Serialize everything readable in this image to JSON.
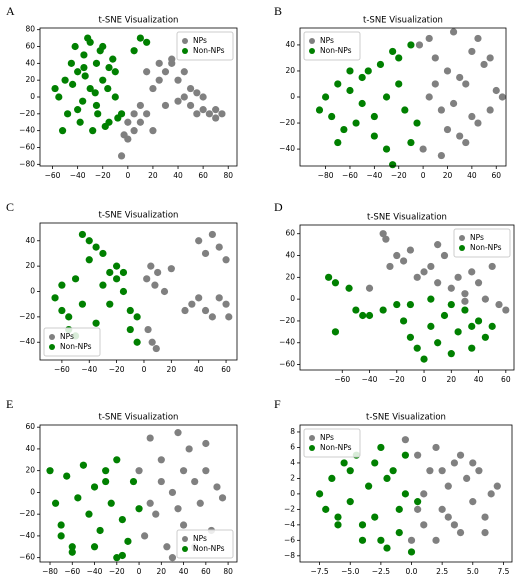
{
  "chart_data": [
    {
      "panel_label": "A",
      "type": "scatter",
      "title": "t-SNE Visualization",
      "legend": "upper right",
      "grid": false,
      "xlim": [
        -70,
        87
      ],
      "ylim": [
        -82,
        82
      ],
      "xticks": [
        {
          "value": -60,
          "label": "−60"
        },
        {
          "value": -40,
          "label": "−40"
        },
        {
          "value": -20,
          "label": "−20"
        },
        0,
        20,
        40,
        60,
        80
      ],
      "yticks": [
        {
          "value": -80,
          "label": "−80"
        },
        {
          "value": -60,
          "label": "−60"
        },
        {
          "value": -40,
          "label": "−40"
        },
        {
          "value": -20,
          "label": "−20"
        },
        0,
        20,
        40,
        60,
        80
      ],
      "series": [
        {
          "name": "NPs",
          "color": "#808080",
          "x": [
            -5,
            0,
            5,
            10,
            15,
            20,
            25,
            30,
            35,
            40,
            45,
            50,
            55,
            60,
            65,
            70,
            75,
            30,
            40,
            50,
            20,
            10,
            60,
            45,
            35,
            25,
            15,
            5,
            0,
            -3,
            55,
            70
          ],
          "y": [
            -70,
            -50,
            -40,
            -30,
            -20,
            10,
            20,
            30,
            40,
            20,
            0,
            -10,
            -20,
            -15,
            -20,
            -25,
            -20,
            -10,
            -5,
            10,
            -40,
            -10,
            0,
            30,
            45,
            40,
            30,
            -20,
            -30,
            -45,
            5,
            -15
          ]
        },
        {
          "name": "Non-NPs",
          "color": "#008000",
          "x": [
            -55,
            -50,
            -45,
            -40,
            -35,
            -30,
            -25,
            -20,
            -15,
            -10,
            -5,
            -48,
            -38,
            -28,
            -18,
            -8,
            -42,
            -32,
            -22,
            -12,
            -52,
            -36,
            -26,
            -16,
            -44,
            -34,
            -24,
            -30,
            -20,
            -58,
            -10,
            -25,
            -40,
            -35,
            -15,
            5,
            10,
            15
          ],
          "y": [
            0,
            20,
            40,
            30,
            50,
            10,
            -10,
            20,
            35,
            0,
            -20,
            -20,
            -30,
            -40,
            -35,
            -25,
            60,
            70,
            55,
            45,
            -40,
            -5,
            5,
            10,
            15,
            25,
            -20,
            65,
            60,
            10,
            30,
            40,
            -15,
            35,
            -30,
            55,
            70,
            65
          ]
        }
      ]
    },
    {
      "panel_label": "B",
      "type": "scatter",
      "title": "t-SNE Visualization",
      "legend": "upper left",
      "grid": false,
      "xlim": [
        -101,
        68
      ],
      "ylim": [
        -53,
        53
      ],
      "xticks": [
        {
          "value": -80,
          "label": "−80"
        },
        {
          "value": -60,
          "label": "−60"
        },
        {
          "value": -40,
          "label": "−40"
        },
        {
          "value": -20,
          "label": "−20"
        },
        0,
        20,
        40,
        60
      ],
      "yticks": [
        {
          "value": -40,
          "label": "−40"
        },
        {
          "value": -20,
          "label": "−20"
        },
        0,
        20,
        40
      ],
      "series": [
        {
          "name": "NPs",
          "color": "#808080",
          "x": [
            -3,
            0,
            5,
            10,
            15,
            20,
            25,
            30,
            35,
            40,
            45,
            50,
            55,
            60,
            65,
            5,
            15,
            25,
            35,
            45,
            55,
            10,
            20,
            30,
            40
          ],
          "y": [
            40,
            -40,
            45,
            30,
            -45,
            20,
            50,
            -30,
            10,
            35,
            -20,
            25,
            -10,
            5,
            0,
            0,
            -10,
            -5,
            -35,
            45,
            30,
            10,
            -25,
            15,
            -15
          ]
        },
        {
          "name": "Non-NPs",
          "color": "#008000",
          "x": [
            -85,
            -80,
            -75,
            -70,
            -65,
            -60,
            -55,
            -50,
            -45,
            -40,
            -35,
            -30,
            -25,
            -20,
            -15,
            -10,
            -5,
            -70,
            -60,
            -50,
            -40,
            -30,
            -20,
            -25,
            -10
          ],
          "y": [
            -10,
            0,
            -15,
            10,
            -25,
            5,
            -20,
            15,
            20,
            -30,
            25,
            -40,
            35,
            30,
            -10,
            40,
            -20,
            -35,
            20,
            -5,
            -15,
            0,
            10,
            -52,
            -35
          ]
        }
      ]
    },
    {
      "panel_label": "C",
      "type": "scatter",
      "title": "t-SNE Visualization",
      "legend": "lower left",
      "grid": false,
      "xlim": [
        -76,
        68
      ],
      "ylim": [
        -54,
        54
      ],
      "xticks": [
        {
          "value": -60,
          "label": "−60"
        },
        {
          "value": -40,
          "label": "−40"
        },
        {
          "value": -20,
          "label": "−20"
        },
        0,
        20,
        40,
        60
      ],
      "yticks": [
        {
          "value": -40,
          "label": "−40"
        },
        {
          "value": -20,
          "label": "−20"
        },
        0,
        20,
        40
      ],
      "series": [
        {
          "name": "NPs",
          "color": "#808080",
          "x": [
            2,
            5,
            8,
            10,
            15,
            20,
            3,
            6,
            9,
            40,
            45,
            50,
            55,
            60,
            35,
            45,
            55,
            62,
            30,
            40,
            50,
            60
          ],
          "y": [
            10,
            20,
            5,
            15,
            0,
            18,
            -30,
            -40,
            -45,
            40,
            30,
            45,
            35,
            25,
            -10,
            -15,
            -5,
            -20,
            -15,
            -5,
            -20,
            -10
          ]
        },
        {
          "name": "Non-NPs",
          "color": "#008000",
          "x": [
            -65,
            -60,
            -55,
            -50,
            -45,
            -40,
            -35,
            -30,
            -25,
            -20,
            -15,
            -10,
            -5,
            -40,
            -45,
            -35,
            -60,
            -55,
            -25,
            -20,
            -15,
            -10,
            -5,
            -30,
            -50
          ],
          "y": [
            -5,
            5,
            -20,
            10,
            -10,
            40,
            35,
            30,
            15,
            20,
            0,
            -15,
            -40,
            25,
            45,
            -25,
            -15,
            -30,
            -10,
            10,
            15,
            -30,
            -20,
            5,
            -35
          ]
        }
      ]
    },
    {
      "panel_label": "D",
      "type": "scatter",
      "title": "t-SNE Visualization",
      "legend": "upper right",
      "grid": false,
      "xlim": [
        -91,
        66
      ],
      "ylim": [
        -65,
        68
      ],
      "xticks": [
        {
          "value": -60,
          "label": "−60"
        },
        {
          "value": -40,
          "label": "−40"
        },
        {
          "value": -20,
          "label": "−20"
        },
        0,
        20,
        40,
        60
      ],
      "yticks": [
        {
          "value": -60,
          "label": "−60"
        },
        {
          "value": -40,
          "label": "−40"
        },
        {
          "value": -20,
          "label": "−20"
        },
        0,
        20,
        40,
        60
      ],
      "series": [
        {
          "name": "NPs",
          "color": "#808080",
          "x": [
            -30,
            -28,
            -20,
            -15,
            -10,
            -5,
            0,
            5,
            10,
            15,
            20,
            25,
            30,
            35,
            40,
            45,
            50,
            55,
            60,
            -40,
            -25,
            10,
            30
          ],
          "y": [
            60,
            55,
            40,
            35,
            45,
            20,
            25,
            30,
            15,
            40,
            10,
            20,
            5,
            25,
            15,
            0,
            30,
            -5,
            -10,
            10,
            30,
            50,
            -2
          ]
        },
        {
          "name": "Non-NPs",
          "color": "#008000",
          "x": [
            -70,
            -65,
            -55,
            -50,
            -45,
            -65,
            -40,
            -30,
            -20,
            -15,
            -10,
            -5,
            0,
            5,
            10,
            15,
            20,
            25,
            30,
            35,
            40,
            45,
            50,
            -10,
            5,
            20,
            35
          ],
          "y": [
            20,
            15,
            10,
            -10,
            -15,
            -30,
            -15,
            -10,
            -5,
            -20,
            -35,
            -45,
            -55,
            -25,
            -40,
            -15,
            -50,
            -30,
            -10,
            -45,
            -20,
            -35,
            -25,
            -5,
            0,
            -5,
            -25
          ]
        }
      ]
    },
    {
      "panel_label": "E",
      "type": "scatter",
      "title": "t-SNE Visualization",
      "legend": "lower right",
      "grid": false,
      "xlim": [
        -89,
        88
      ],
      "ylim": [
        -64,
        62
      ],
      "xticks": [
        {
          "value": -80,
          "label": "−80"
        },
        {
          "value": -60,
          "label": "−60"
        },
        {
          "value": -40,
          "label": "−40"
        },
        {
          "value": -20,
          "label": "−20"
        },
        0,
        20,
        40,
        60,
        80
      ],
      "yticks": [
        {
          "value": -60,
          "label": "−60"
        },
        {
          "value": -40,
          "label": "−40"
        },
        {
          "value": -20,
          "label": "−20"
        },
        0,
        20,
        40,
        60
      ],
      "series": [
        {
          "name": "NPs",
          "color": "#808080",
          "x": [
            0,
            5,
            10,
            15,
            20,
            25,
            30,
            35,
            40,
            45,
            50,
            55,
            60,
            65,
            70,
            75,
            30,
            50,
            20,
            40,
            60,
            10,
            35
          ],
          "y": [
            20,
            -40,
            50,
            -20,
            30,
            -50,
            0,
            55,
            -30,
            40,
            10,
            -10,
            20,
            -35,
            5,
            -5,
            -60,
            -50,
            10,
            20,
            45,
            -10,
            -15
          ]
        },
        {
          "name": "Non-NPs",
          "color": "#008000",
          "x": [
            -80,
            -75,
            -70,
            -65,
            -60,
            -55,
            -50,
            -45,
            -40,
            -35,
            -30,
            -25,
            -20,
            -15,
            -10,
            -5,
            0,
            -70,
            -60,
            -40,
            -20,
            -15,
            -30
          ],
          "y": [
            20,
            -10,
            -40,
            15,
            -50,
            -5,
            25,
            -20,
            5,
            -35,
            20,
            -10,
            30,
            -25,
            -45,
            10,
            -15,
            -30,
            -55,
            -50,
            -60,
            -58,
            10
          ]
        }
      ]
    },
    {
      "panel_label": "F",
      "type": "scatter",
      "title": "t-SNE Visualization",
      "legend": "upper left",
      "grid": false,
      "xlim": [
        -9.1,
        8.2
      ],
      "ylim": [
        -8.8,
        8.9
      ],
      "xticks": [
        {
          "value": -7.5,
          "label": "−7.5"
        },
        {
          "value": -5,
          "label": "−5.0"
        },
        {
          "value": -2.5,
          "label": "−2.5"
        },
        {
          "value": 0,
          "label": "0.0"
        },
        2.5,
        {
          "value": 5,
          "label": "5.0"
        },
        7.5
      ],
      "yticks": [
        {
          "value": -8,
          "label": "−8"
        },
        {
          "value": -6,
          "label": "−6"
        },
        {
          "value": -4,
          "label": "−4"
        },
        {
          "value": -2,
          "label": "−2"
        },
        0,
        2,
        4,
        6,
        8
      ],
      "series": [
        {
          "name": "NPs",
          "color": "#808080",
          "x": [
            -0.5,
            0,
            0.5,
            1,
            1.5,
            2,
            2.5,
            3,
            3.5,
            4,
            4.5,
            5,
            5.5,
            6,
            6.5,
            7,
            1,
            2,
            3,
            4,
            5,
            0.5,
            2.5,
            3.5,
            6
          ],
          "y": [
            7,
            -6,
            5,
            -4,
            3,
            6,
            -2,
            1,
            4,
            -5,
            2,
            -1,
            3,
            -3,
            0,
            1,
            0,
            -6,
            -3,
            5,
            4,
            -2,
            3,
            -4,
            -5
          ]
        },
        {
          "name": "Non-NPs",
          "color": "#008000",
          "x": [
            -7.5,
            -7,
            -6.5,
            -6,
            -5.5,
            -5,
            -4.5,
            -4,
            -3.5,
            -3,
            -2.5,
            -2,
            -1.5,
            -1,
            -0.5,
            0,
            0.5,
            -4,
            -3,
            -2,
            -1,
            -5,
            -6,
            -0.5,
            -2.5
          ],
          "y": [
            0,
            -2,
            2,
            -4,
            4,
            -1,
            5,
            -6,
            1,
            -3,
            6,
            -7,
            3,
            -5,
            0,
            -7.5,
            -1,
            -4,
            4,
            2,
            -2,
            3,
            -3,
            5,
            -6
          ]
        }
      ]
    }
  ]
}
